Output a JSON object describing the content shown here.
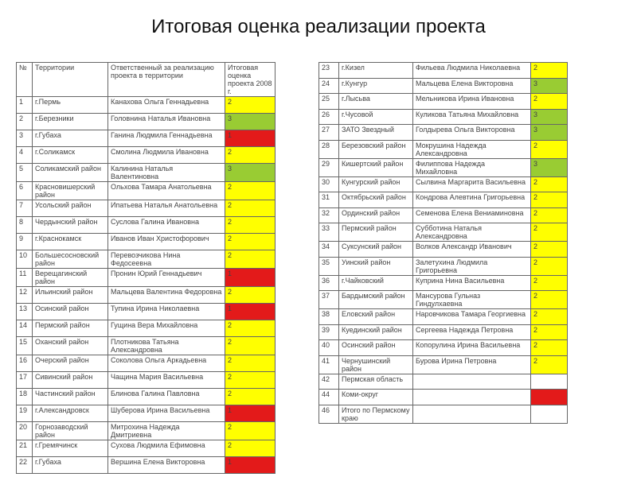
{
  "title": "Итоговая оценка реализации проекта",
  "header": [
    "№",
    "Территории",
    "Ответственный за реализацию проекта в территории",
    "Итоговая оценка проекта 2008 г."
  ],
  "left_rows": [
    {
      "n": "1",
      "territory": "г.Пермь",
      "person": "Канахова Ольга Геннадьевна",
      "score": "2",
      "color": "#ffff00"
    },
    {
      "n": "2",
      "territory": "г.Березники",
      "person": "Головнина Наталья Ивановна",
      "score": "3",
      "color": "#99cc33"
    },
    {
      "n": "3",
      "territory": "г.Губаха",
      "person": "Ганина Людмила Геннадьевна",
      "score": "1",
      "color": "#e31a1a"
    },
    {
      "n": "4",
      "territory": "г.Соликамск",
      "person": "Смолина Людмила Ивановна",
      "score": "2",
      "color": "#ffff00"
    },
    {
      "n": "5",
      "territory": "Соликамский район",
      "person": "Калинина Наталья Валентиновна",
      "score": "3",
      "color": "#99cc33"
    },
    {
      "n": "6",
      "territory": "Красновишерский район",
      "person": "Ольхова Тамара Анатольевна",
      "score": "2",
      "color": "#ffff00"
    },
    {
      "n": "7",
      "territory": "Усольский район",
      "person": "Ипатьева Наталья Анатольевна",
      "score": "2",
      "color": "#ffff00"
    },
    {
      "n": "8",
      "territory": "Чердынский район",
      "person": "Суслова Галина Ивановна",
      "score": "2",
      "color": "#ffff00"
    },
    {
      "n": "9",
      "territory": "г.Краснокамск",
      "person": "Иванов Иван Христофорович",
      "score": "2",
      "color": "#ffff00"
    },
    {
      "n": "10",
      "territory": "Большесосновский район",
      "person": "Перевозчикова Нина Федосеевна",
      "score": "2",
      "color": "#ffff00"
    },
    {
      "n": "11",
      "territory": "Верещагинский район",
      "person": "Пронин Юрий Геннадьевич",
      "score": "1",
      "color": "#e31a1a"
    },
    {
      "n": "12",
      "territory": "Ильинский район",
      "person": "Мальцева Валентина Федоровна",
      "score": "2",
      "color": "#ffff00"
    },
    {
      "n": "13",
      "territory": "Осинский район",
      "person": "Тупина Ирина Николаевна",
      "score": "1",
      "color": "#e31a1a"
    },
    {
      "n": "14",
      "territory": "Пермский район",
      "person": "Гущина Вера Михайловна",
      "score": "2",
      "color": "#ffff00"
    },
    {
      "n": "15",
      "territory": "Оханский район",
      "person": "Плотникова Татьяна Александровна",
      "score": "2",
      "color": "#ffff00"
    },
    {
      "n": "16",
      "territory": "Очерский район",
      "person": "Соколова Ольга Аркадьевна",
      "score": "2",
      "color": "#ffff00"
    },
    {
      "n": "17",
      "territory": "Сивинский район",
      "person": "Чащина Мария Васильевна",
      "score": "2",
      "color": "#ffff00"
    },
    {
      "n": "18",
      "territory": "Частинский район",
      "person": "Блинова Галина Павловна",
      "score": "2",
      "color": "#ffff00"
    },
    {
      "n": "19",
      "territory": "г.Александровск",
      "person": "Шуберова Ирина Васильевна",
      "score": "1",
      "color": "#e31a1a"
    },
    {
      "n": "20",
      "territory": "Горнозаводский район",
      "person": "Митрохина Надежда Дмитриевна",
      "score": "2",
      "color": "#ffff00"
    },
    {
      "n": "21",
      "territory": "г.Гремячинск",
      "person": "Сухова Людмила Ефимовна",
      "score": "2",
      "color": "#ffff00"
    },
    {
      "n": "22",
      "territory": "г.Губаха",
      "person": "Вершина Елена Викторовна",
      "score": "1",
      "color": "#e31a1a"
    }
  ],
  "right_rows": [
    {
      "n": "23",
      "territory": "г.Кизел",
      "person": "Фильева Людмила Николаевна",
      "score": "2",
      "color": "#ffff00"
    },
    {
      "n": "24",
      "territory": "г.Кунгур",
      "person": "Мальцева Елена Викторовна",
      "score": "3",
      "color": "#99cc33"
    },
    {
      "n": "25",
      "territory": "г.Лысьва",
      "person": "Мельникова Ирина Ивановна",
      "score": "2",
      "color": "#ffff00"
    },
    {
      "n": "26",
      "territory": "г.Чусовой",
      "person": "Куликова Татьяна Михайловна",
      "score": "3",
      "color": "#99cc33"
    },
    {
      "n": "27",
      "territory": "ЗАТО Звездный",
      "person": "Голдырева Ольга Викторовна",
      "score": "3",
      "color": "#99cc33"
    },
    {
      "n": "28",
      "territory": "Березовский район",
      "person": "Мокрушина Надежда Александровна",
      "score": "2",
      "color": "#ffff00"
    },
    {
      "n": "29",
      "territory": "Кишертский район",
      "person": "Филиппова Надежда Михайловна",
      "score": "3",
      "color": "#99cc33"
    },
    {
      "n": "30",
      "territory": "Кунгурский район",
      "person": "Сылвина Маргарита Васильевна",
      "score": "2",
      "color": "#ffff00"
    },
    {
      "n": "31",
      "territory": "Октябрьский район",
      "person": "Кондрова Алевтина Григорьевна",
      "score": "2",
      "color": "#ffff00"
    },
    {
      "n": "32",
      "territory": "Ординский район",
      "person": "Семенова Елена Вениаминовна",
      "score": "2",
      "color": "#ffff00"
    },
    {
      "n": "33",
      "territory": "Пермский район",
      "person": "Субботина Наталья Александровна",
      "score": "2",
      "color": "#ffff00"
    },
    {
      "n": "34",
      "territory": "Суксунский район",
      "person": "Волков Александр Иванович",
      "score": "2",
      "color": "#ffff00"
    },
    {
      "n": "35",
      "territory": "Уинский район",
      "person": "Залетухина Людмила Григорьевна",
      "score": "2",
      "color": "#ffff00"
    },
    {
      "n": "36",
      "territory": "г.Чайковский",
      "person": "Куприна Нина Васильевна",
      "score": "2",
      "color": "#ffff00"
    },
    {
      "n": "37",
      "territory": "Бардымский район",
      "person": "Мансурова Гульназ Гиндулхаевна",
      "score": "2",
      "color": "#ffff00"
    },
    {
      "n": "38",
      "territory": "Еловский район",
      "person": "Наровчикова Тамара Георгиевна",
      "score": "2",
      "color": "#ffff00"
    },
    {
      "n": "39",
      "territory": "Куединский район",
      "person": "Сергеева Надежда Петровна",
      "score": "2",
      "color": "#ffff00"
    },
    {
      "n": "40",
      "territory": "Осинский район",
      "person": "Копорулина Ирина Васильевна",
      "score": "2",
      "color": "#ffff00"
    },
    {
      "n": "41",
      "territory": "Чернушинский район",
      "person": "Бурова Ирина Петровна",
      "score": "2",
      "color": "#ffff00"
    },
    {
      "n": "42",
      "territory": "Пермская область",
      "person": null,
      "score": null,
      "color": null
    },
    {
      "n": "44",
      "territory": "Коми-округ",
      "person": null,
      "score": null,
      "color": "#e31a1a"
    },
    {
      "n": "46",
      "territory": "Итого по Пермскому краю",
      "person": null,
      "score": null,
      "color": null
    }
  ]
}
